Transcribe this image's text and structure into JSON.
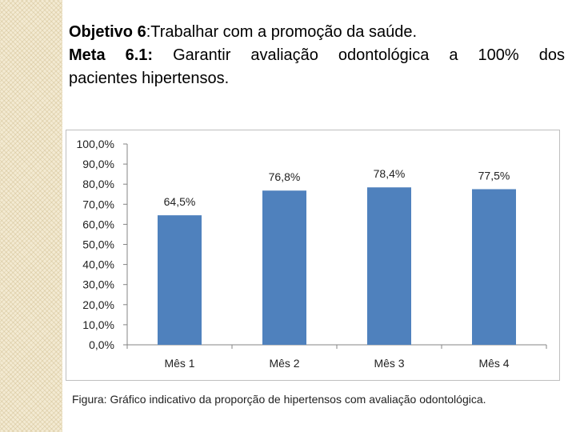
{
  "heading": {
    "objective_label": "Objetivo 6",
    "objective_text": ":Trabalhar com a promoção da saúde.",
    "goal_label": "Meta 6.1:",
    "goal_text_line1": " Garantir avaliação odontológica a 100% dos",
    "goal_text_line2": "pacientes hipertensos."
  },
  "chart_data": {
    "type": "bar",
    "categories": [
      "Mês 1",
      "Mês 2",
      "Mês 3",
      "Mês 4"
    ],
    "values": [
      64.5,
      76.8,
      78.4,
      77.5
    ],
    "data_labels": [
      "64,5%",
      "76,8%",
      "78,4%",
      "77,5%"
    ],
    "ylim": [
      0,
      100
    ],
    "yticks": [
      "0,0%",
      "10,0%",
      "20,0%",
      "30,0%",
      "40,0%",
      "50,0%",
      "60,0%",
      "70,0%",
      "80,0%",
      "90,0%",
      "100,0%"
    ],
    "bar_color": "#4f81bd",
    "grid": false,
    "legend": "none",
    "title": "",
    "xlabel": "",
    "ylabel": ""
  },
  "caption": "Figura: Gráfico indicativo da proporção de hipertensos com avaliação odontológica."
}
